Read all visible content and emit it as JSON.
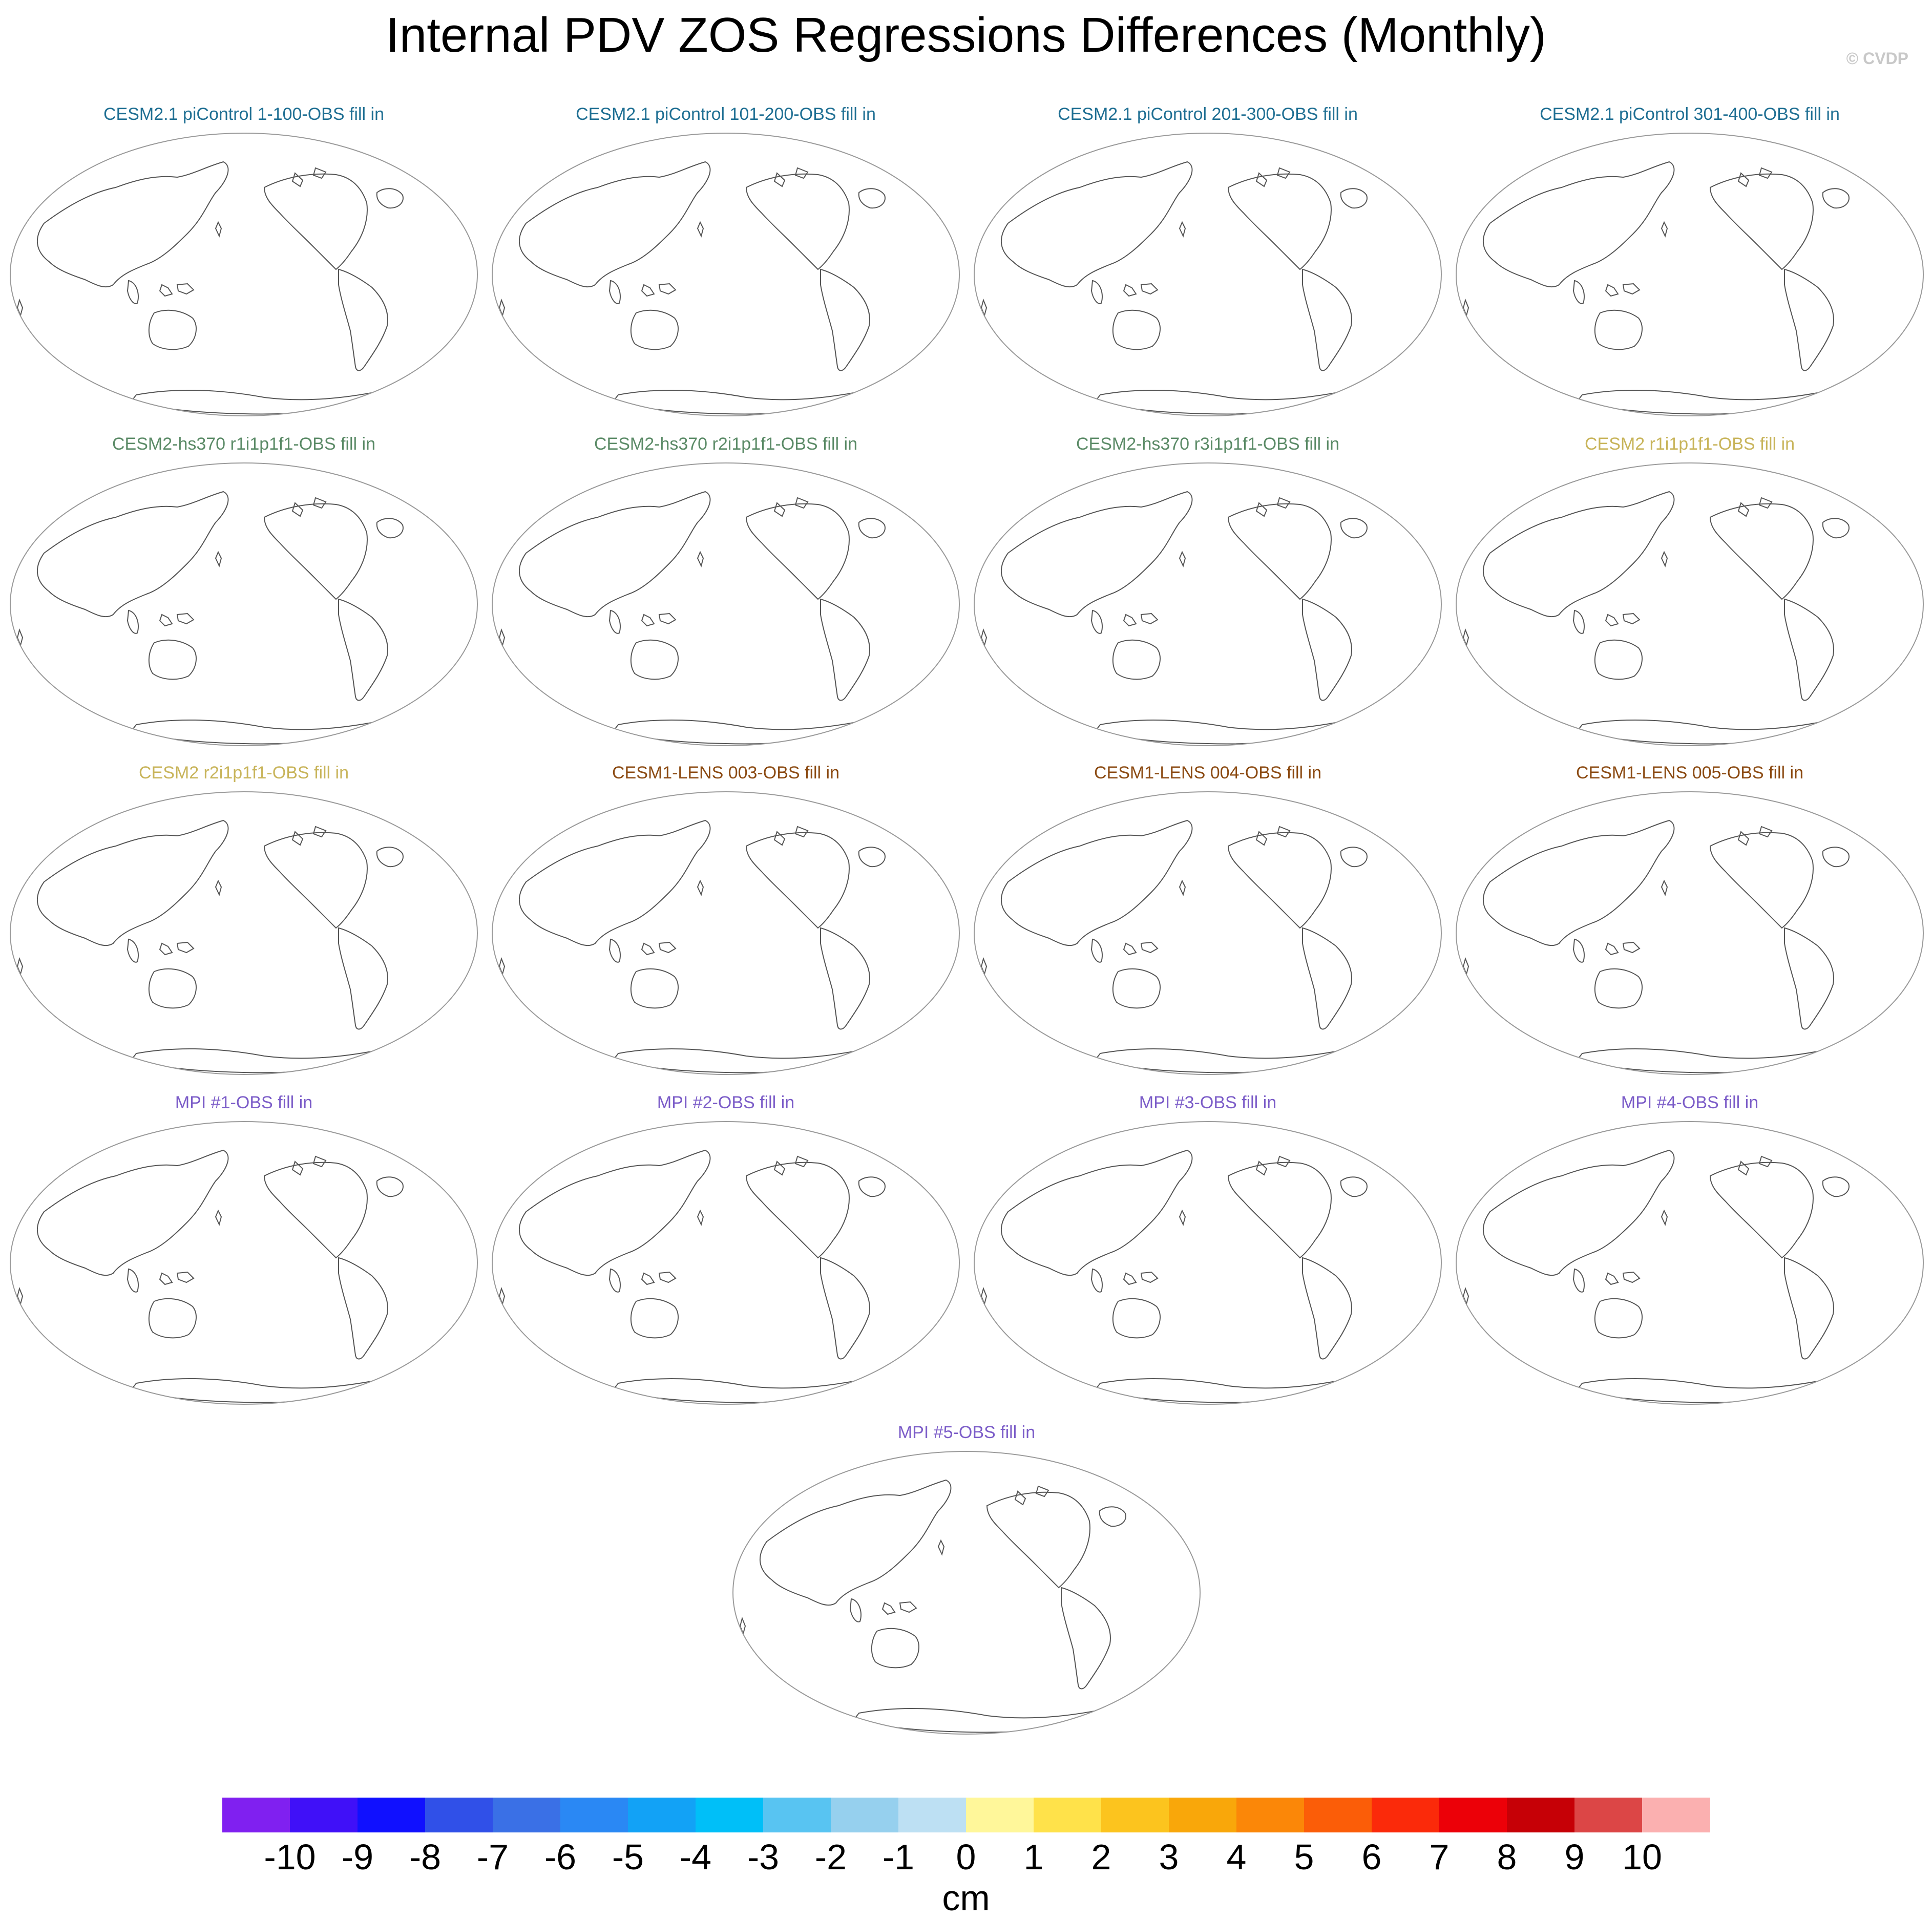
{
  "figure": {
    "title": "Internal PDV ZOS Regressions Differences (Monthly)",
    "watermark": "© CVDP"
  },
  "chart_data": {
    "type": "heatmap",
    "title": "Internal PDV ZOS Regressions Differences (Monthly)",
    "projection": "global map, Pacific-centered",
    "panels": [
      {
        "title": "CESM2.1 piControl 1-100-OBS fill in",
        "color": "#1f6f93"
      },
      {
        "title": "CESM2.1 piControl 101-200-OBS fill in",
        "color": "#1f6f93"
      },
      {
        "title": "CESM2.1 piControl 201-300-OBS fill in",
        "color": "#1f6f93"
      },
      {
        "title": "CESM2.1 piControl 301-400-OBS fill in",
        "color": "#1f6f93"
      },
      {
        "title": "CESM2-hs370 r1i1p1f1-OBS fill in",
        "color": "#5a8a66"
      },
      {
        "title": "CESM2-hs370 r2i1p1f1-OBS fill in",
        "color": "#5a8a66"
      },
      {
        "title": "CESM2-hs370 r3i1p1f1-OBS fill in",
        "color": "#5a8a66"
      },
      {
        "title": "CESM2 r1i1p1f1-OBS fill in",
        "color": "#c8b45a"
      },
      {
        "title": "CESM2 r2i1p1f1-OBS fill in",
        "color": "#c8b45a"
      },
      {
        "title": "CESM1-LENS 003-OBS fill in",
        "color": "#8b4a12"
      },
      {
        "title": "CESM1-LENS 004-OBS fill in",
        "color": "#8b4a12"
      },
      {
        "title": "CESM1-LENS 005-OBS fill in",
        "color": "#8b4a12"
      },
      {
        "title": "MPI #1-OBS fill in",
        "color": "#7b5cc8"
      },
      {
        "title": "MPI #2-OBS fill in",
        "color": "#7b5cc8"
      },
      {
        "title": "MPI #3-OBS fill in",
        "color": "#7b5cc8"
      },
      {
        "title": "MPI #4-OBS fill in",
        "color": "#7b5cc8"
      },
      {
        "title": "MPI #5-OBS fill in",
        "color": "#7b5cc8"
      }
    ],
    "colorbar": {
      "units": "cm",
      "levels": [
        "-10",
        "-9",
        "-8",
        "-7",
        "-6",
        "-5",
        "-4",
        "-3",
        "-2",
        "-1",
        "0",
        "1",
        "2",
        "3",
        "4",
        "5",
        "6",
        "7",
        "8",
        "9",
        "10"
      ],
      "colors": [
        "#8020f0",
        "#4010f8",
        "#1010ff",
        "#3050e8",
        "#3a70e6",
        "#2a88f4",
        "#12a2f6",
        "#00bff8",
        "#58c4f2",
        "#96d0ee",
        "#bde0f3",
        "#fff79a",
        "#ffe24a",
        "#fcc41e",
        "#f9a70a",
        "#fb8708",
        "#fb5d08",
        "#fb2a0a",
        "#ec0008",
        "#c60006",
        "#dc4646",
        "#fbb0b0"
      ]
    }
  }
}
